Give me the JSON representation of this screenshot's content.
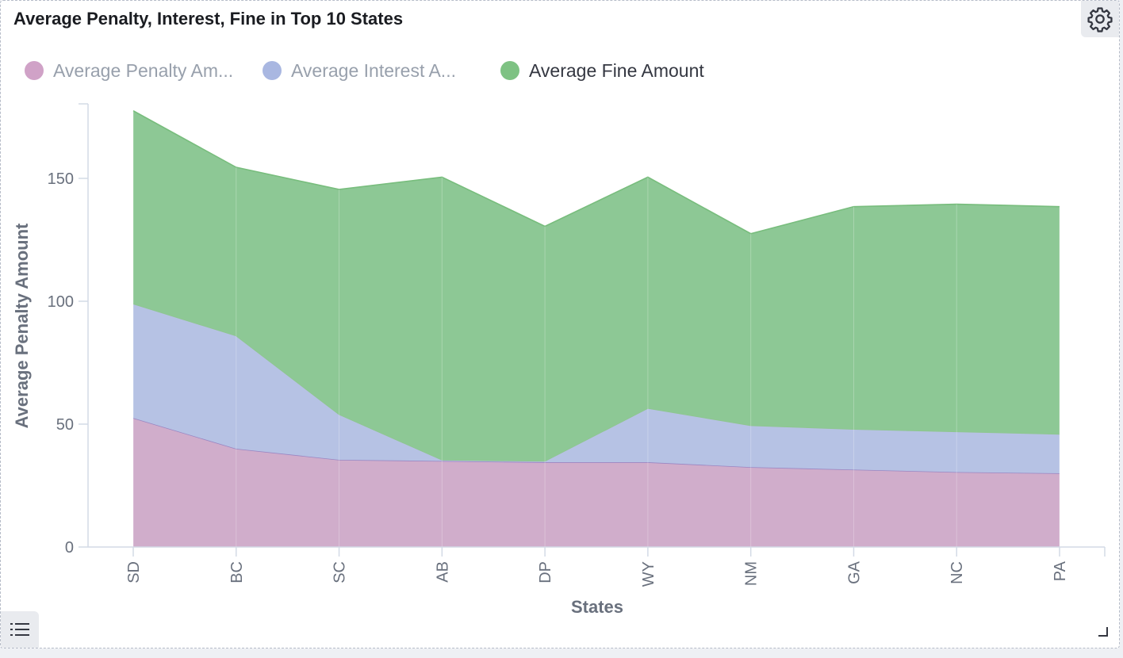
{
  "panel": {
    "title": "Average Penalty, Interest, Fine in Top 10 States",
    "settings_icon": "gear-icon",
    "legend_toggle_icon": "list-icon",
    "resize_icon": "resize-handle-icon"
  },
  "legend": [
    {
      "label": "Average Penalty Am...",
      "color": "#d0a2c7",
      "muted": true
    },
    {
      "label": "Average Interest A...",
      "color": "#a9b7e1",
      "muted": true
    },
    {
      "label": "Average Fine Amount",
      "color": "#7ec283",
      "muted": false
    }
  ],
  "chart_data": {
    "type": "area",
    "stacked": true,
    "xlabel": "States",
    "ylabel": "Average Penalty Amount",
    "categories": [
      "SD",
      "BC",
      "SC",
      "AB",
      "DP",
      "WY",
      "NM",
      "GA",
      "NC",
      "PA"
    ],
    "ylim": [
      0,
      180
    ],
    "yticks": [
      0,
      50,
      100,
      150
    ],
    "grid": false,
    "legend_position": "top-left",
    "series": [
      {
        "name": "Average Penalty Amount",
        "color": "#d0adcb",
        "line": "#9a86c2",
        "values": [
          52.5,
          40,
          35.5,
          35,
          34.5,
          34.5,
          32.5,
          31.5,
          30.5,
          30
        ]
      },
      {
        "name": "Average Interest Amount",
        "color": "#b6c2e4",
        "line": "#8fc58f",
        "values": [
          46.5,
          46,
          18.5,
          0.5,
          0.5,
          22,
          17,
          16.5,
          16.5,
          16
        ]
      },
      {
        "name": "Average Fine Amount",
        "color": "#8dc895",
        "line": "#78bd7d",
        "values": [
          78.5,
          68.5,
          91.5,
          115,
          95.5,
          94,
          78,
          90.5,
          92.5,
          92.5
        ]
      }
    ]
  }
}
